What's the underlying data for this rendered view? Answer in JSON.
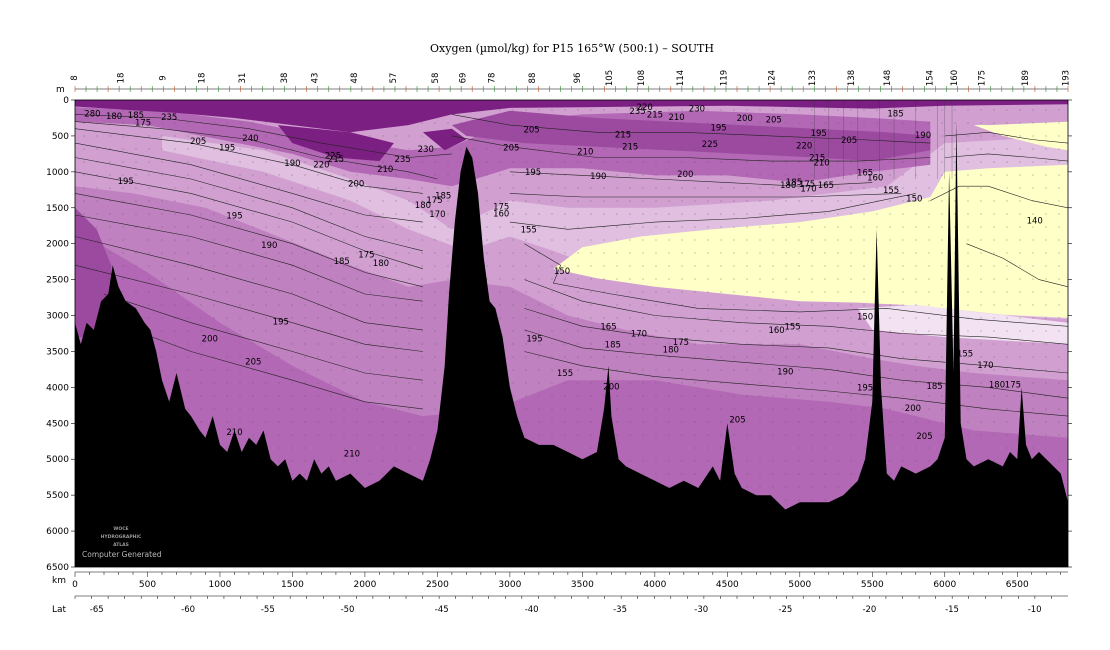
{
  "chart_data": {
    "type": "contour-section",
    "title": "Oxygen (µmol/kg) for P15 165°W (500:1) – SOUTH",
    "ylabel": "m",
    "xlabel": "km",
    "lat_label": "Lat",
    "ylim": [
      0,
      6500
    ],
    "xlim": [
      0,
      6850
    ],
    "y_ticks": [
      0,
      500,
      1000,
      1500,
      2000,
      2500,
      3000,
      3500,
      4000,
      4500,
      5000,
      5500,
      6000,
      6500
    ],
    "x_ticks": [
      0,
      500,
      1000,
      1500,
      2000,
      2500,
      3000,
      3500,
      4000,
      4500,
      5000,
      5500,
      6000,
      6500
    ],
    "lat_ticks": [
      {
        "km": 150,
        "label": "-65"
      },
      {
        "km": 780,
        "label": "-60"
      },
      {
        "km": 1330,
        "label": "-55"
      },
      {
        "km": 1880,
        "label": "-50"
      },
      {
        "km": 2530,
        "label": "-45"
      },
      {
        "km": 3150,
        "label": "-40"
      },
      {
        "km": 3760,
        "label": "-35"
      },
      {
        "km": 4320,
        "label": "-30"
      },
      {
        "km": 4900,
        "label": "-25"
      },
      {
        "km": 5480,
        "label": "-20"
      },
      {
        "km": 6050,
        "label": "-15"
      },
      {
        "km": 6620,
        "label": "-10"
      }
    ],
    "station_ticks": [
      {
        "km": 0,
        "label": "8"
      },
      {
        "km": 320,
        "label": "18"
      },
      {
        "km": 610,
        "label": "9"
      },
      {
        "km": 880,
        "label": "18"
      },
      {
        "km": 1160,
        "label": "31"
      },
      {
        "km": 1450,
        "label": "38"
      },
      {
        "km": 1660,
        "label": "43"
      },
      {
        "km": 1930,
        "label": "48"
      },
      {
        "km": 2200,
        "label": "57"
      },
      {
        "km": 2490,
        "label": "58"
      },
      {
        "km": 2680,
        "label": "69"
      },
      {
        "km": 2880,
        "label": "78"
      },
      {
        "km": 3160,
        "label": "88"
      },
      {
        "km": 3470,
        "label": "96"
      },
      {
        "km": 3690,
        "label": "105"
      },
      {
        "km": 3910,
        "label": "108"
      },
      {
        "km": 4180,
        "label": "114"
      },
      {
        "km": 4480,
        "label": "119"
      },
      {
        "km": 4810,
        "label": "124"
      },
      {
        "km": 5090,
        "label": "133"
      },
      {
        "km": 5360,
        "label": "138"
      },
      {
        "km": 5610,
        "label": "148"
      },
      {
        "km": 5900,
        "label": "154"
      },
      {
        "km": 6070,
        "label": "160"
      },
      {
        "km": 6260,
        "label": "175"
      },
      {
        "km": 6560,
        "label": "189"
      },
      {
        "km": 6840,
        "label": "193"
      }
    ],
    "levels": [
      {
        "max": 150,
        "color": "#ffffc8"
      },
      {
        "max": 160,
        "color": "#f2e2f2"
      },
      {
        "max": 175,
        "color": "#e0bfe0"
      },
      {
        "max": 190,
        "color": "#d1a0d1"
      },
      {
        "max": 205,
        "color": "#c081c0"
      },
      {
        "max": 215,
        "color": "#b268b4"
      },
      {
        "max": 225,
        "color": "#9c4aa0"
      },
      {
        "max": 240,
        "color": "#7c1f82"
      }
    ],
    "contour_labels": [
      {
        "km": 120,
        "depth": 190,
        "text": "280"
      },
      {
        "km": 270,
        "depth": 220,
        "text": "180"
      },
      {
        "km": 420,
        "depth": 210,
        "text": "185"
      },
      {
        "km": 470,
        "depth": 310,
        "text": "175"
      },
      {
        "km": 650,
        "depth": 240,
        "text": "235"
      },
      {
        "km": 850,
        "depth": 570,
        "text": "205"
      },
      {
        "km": 1050,
        "depth": 660,
        "text": "195"
      },
      {
        "km": 1210,
        "depth": 530,
        "text": "240"
      },
      {
        "km": 1500,
        "depth": 880,
        "text": "190"
      },
      {
        "km": 1700,
        "depth": 900,
        "text": "220"
      },
      {
        "km": 1780,
        "depth": 770,
        "text": "225"
      },
      {
        "km": 1800,
        "depth": 820,
        "text": "215"
      },
      {
        "km": 2260,
        "depth": 820,
        "text": "235"
      },
      {
        "km": 2140,
        "depth": 960,
        "text": "210"
      },
      {
        "km": 2420,
        "depth": 680,
        "text": "230"
      },
      {
        "km": 1940,
        "depth": 1160,
        "text": "200"
      },
      {
        "km": 350,
        "depth": 1130,
        "text": "195"
      },
      {
        "km": 2540,
        "depth": 1330,
        "text": "185"
      },
      {
        "km": 2480,
        "depth": 1390,
        "text": "175"
      },
      {
        "km": 2400,
        "depth": 1460,
        "text": "180"
      },
      {
        "km": 2500,
        "depth": 1590,
        "text": "170"
      },
      {
        "km": 2940,
        "depth": 1480,
        "text": "175"
      },
      {
        "km": 2940,
        "depth": 1580,
        "text": "160"
      },
      {
        "km": 3010,
        "depth": 660,
        "text": "205"
      },
      {
        "km": 3150,
        "depth": 410,
        "text": "205"
      },
      {
        "km": 3520,
        "depth": 720,
        "text": "210"
      },
      {
        "km": 3780,
        "depth": 480,
        "text": "215"
      },
      {
        "km": 3830,
        "depth": 650,
        "text": "215"
      },
      {
        "km": 3930,
        "depth": 100,
        "text": "220"
      },
      {
        "km": 3880,
        "depth": 150,
        "text": "235"
      },
      {
        "km": 4000,
        "depth": 200,
        "text": "215"
      },
      {
        "km": 4150,
        "depth": 240,
        "text": "210"
      },
      {
        "km": 4290,
        "depth": 120,
        "text": "230"
      },
      {
        "km": 4440,
        "depth": 380,
        "text": "195"
      },
      {
        "km": 4620,
        "depth": 250,
        "text": "200"
      },
      {
        "km": 4820,
        "depth": 270,
        "text": "205"
      },
      {
        "km": 4380,
        "depth": 610,
        "text": "225"
      },
      {
        "km": 5030,
        "depth": 630,
        "text": "220"
      },
      {
        "km": 5130,
        "depth": 460,
        "text": "195"
      },
      {
        "km": 5340,
        "depth": 560,
        "text": "205"
      },
      {
        "km": 5120,
        "depth": 800,
        "text": "215"
      },
      {
        "km": 5150,
        "depth": 870,
        "text": "210"
      },
      {
        "km": 5660,
        "depth": 190,
        "text": "185"
      },
      {
        "km": 5850,
        "depth": 490,
        "text": "190"
      },
      {
        "km": 3160,
        "depth": 1000,
        "text": "195"
      },
      {
        "km": 3610,
        "depth": 1060,
        "text": "190"
      },
      {
        "km": 4210,
        "depth": 1030,
        "text": "200"
      },
      {
        "km": 4920,
        "depth": 1180,
        "text": "180"
      },
      {
        "km": 4960,
        "depth": 1140,
        "text": "185"
      },
      {
        "km": 5050,
        "depth": 1170,
        "text": "175"
      },
      {
        "km": 5060,
        "depth": 1230,
        "text": "170"
      },
      {
        "km": 5180,
        "depth": 1180,
        "text": "165"
      },
      {
        "km": 5450,
        "depth": 1010,
        "text": "165"
      },
      {
        "km": 5520,
        "depth": 1080,
        "text": "160"
      },
      {
        "km": 5630,
        "depth": 1250,
        "text": "155"
      },
      {
        "km": 5790,
        "depth": 1370,
        "text": "150"
      },
      {
        "km": 6620,
        "depth": 1680,
        "text": "140"
      },
      {
        "km": 3130,
        "depth": 1800,
        "text": "155"
      },
      {
        "km": 3360,
        "depth": 2380,
        "text": "150"
      },
      {
        "km": 3380,
        "depth": 3800,
        "text": "155"
      },
      {
        "km": 1100,
        "depth": 1610,
        "text": "195"
      },
      {
        "km": 1340,
        "depth": 2020,
        "text": "190"
      },
      {
        "km": 1840,
        "depth": 2240,
        "text": "185"
      },
      {
        "km": 2010,
        "depth": 2150,
        "text": "175"
      },
      {
        "km": 2110,
        "depth": 2270,
        "text": "180"
      },
      {
        "km": 3680,
        "depth": 3150,
        "text": "165"
      },
      {
        "km": 3890,
        "depth": 3250,
        "text": "170"
      },
      {
        "km": 3710,
        "depth": 3400,
        "text": "185"
      },
      {
        "km": 4110,
        "depth": 3470,
        "text": "180"
      },
      {
        "km": 4180,
        "depth": 3370,
        "text": "175"
      },
      {
        "km": 4840,
        "depth": 3200,
        "text": "160"
      },
      {
        "km": 4950,
        "depth": 3150,
        "text": "155"
      },
      {
        "km": 4900,
        "depth": 3780,
        "text": "190"
      },
      {
        "km": 3170,
        "depth": 3320,
        "text": "195"
      },
      {
        "km": 1420,
        "depth": 3080,
        "text": "195"
      },
      {
        "km": 930,
        "depth": 3320,
        "text": "200"
      },
      {
        "km": 1230,
        "depth": 3640,
        "text": "205"
      },
      {
        "km": 5450,
        "depth": 3010,
        "text": "150"
      },
      {
        "km": 3700,
        "depth": 3990,
        "text": "200"
      },
      {
        "km": 4570,
        "depth": 4450,
        "text": "205"
      },
      {
        "km": 5450,
        "depth": 4000,
        "text": "195"
      },
      {
        "km": 6140,
        "depth": 3530,
        "text": "155"
      },
      {
        "km": 6280,
        "depth": 3690,
        "text": "170"
      },
      {
        "km": 6360,
        "depth": 3960,
        "text": "180"
      },
      {
        "km": 6470,
        "depth": 3960,
        "text": "175"
      },
      {
        "km": 5930,
        "depth": 3980,
        "text": "185"
      },
      {
        "km": 5780,
        "depth": 4290,
        "text": "200"
      },
      {
        "km": 5860,
        "depth": 4680,
        "text": "205"
      },
      {
        "km": 1100,
        "depth": 4620,
        "text": "210"
      },
      {
        "km": 1910,
        "depth": 4920,
        "text": "210"
      }
    ],
    "logo_lines": [
      "WOCE",
      "HYDROGRAPHIC",
      "ATLAS"
    ],
    "credit": "Computer Generated"
  }
}
